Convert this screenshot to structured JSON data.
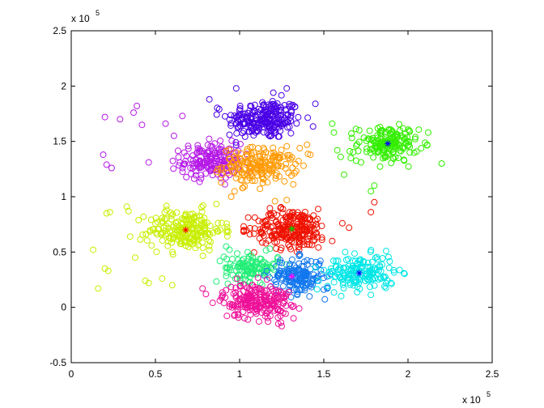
{
  "chart_data": {
    "type": "scatter",
    "xlim": [
      0,
      2.5
    ],
    "ylim": [
      -0.5,
      2.5
    ],
    "x_ticks": [
      "0",
      "0.5",
      "1",
      "1.5",
      "2",
      "2.5"
    ],
    "y_ticks": [
      "-0.5",
      "0",
      "0.5",
      "1",
      "1.5",
      "2",
      "2.5"
    ],
    "x_multiplier": {
      "base": "x 10",
      "exponent": "5"
    },
    "y_multiplier": {
      "base": "x 10",
      "exponent": "5"
    },
    "grid": false,
    "marker": "open-circle",
    "clusters": [
      {
        "color": "#4a00e6",
        "center": [
          1.15,
          1.7
        ],
        "spread": [
          0.11,
          0.09
        ],
        "count": 230,
        "outliers": [
          [
            0.82,
            1.88
          ],
          [
            0.98,
            1.98
          ],
          [
            1.28,
            1.98
          ],
          [
            1.45,
            1.84
          ],
          [
            0.94,
            1.56
          ],
          [
            1.2,
            1.94
          ]
        ]
      },
      {
        "color": "#b519e6",
        "center": [
          0.83,
          1.32
        ],
        "spread": [
          0.09,
          0.08
        ],
        "count": 180,
        "outliers": [
          [
            0.2,
            1.72
          ],
          [
            0.29,
            1.7
          ],
          [
            0.39,
            1.82
          ],
          [
            0.42,
            1.65
          ],
          [
            0.19,
            1.38
          ],
          [
            0.21,
            1.29
          ],
          [
            0.24,
            1.26
          ],
          [
            0.46,
            1.31
          ],
          [
            0.37,
            1.76
          ],
          [
            0.56,
            1.66
          ],
          [
            0.66,
            1.73
          ],
          [
            0.61,
            1.55
          ]
        ]
      },
      {
        "color": "#ff9900",
        "center": [
          1.12,
          1.28
        ],
        "spread": [
          0.11,
          0.08
        ],
        "count": 180,
        "outliers": [
          [
            1.28,
            0.97
          ],
          [
            1.21,
            0.96
          ],
          [
            1.4,
            1.47
          ],
          [
            1.42,
            1.38
          ],
          [
            0.97,
            1.05
          ],
          [
            1.02,
            1.08
          ],
          [
            0.95,
            1.0
          ],
          [
            1.38,
            1.28
          ]
        ]
      },
      {
        "color": "#33ee00",
        "center": [
          1.88,
          1.48
        ],
        "spread": [
          0.09,
          0.08
        ],
        "count": 170,
        "outliers": [
          [
            1.55,
            1.66
          ],
          [
            1.56,
            1.58
          ],
          [
            1.58,
            1.42
          ],
          [
            1.6,
            1.36
          ],
          [
            1.62,
            1.2
          ],
          [
            2.12,
            1.58
          ],
          [
            2.2,
            1.3
          ],
          [
            1.78,
            1.05
          ],
          [
            1.8,
            1.1
          ],
          [
            1.66,
            1.35
          ]
        ]
      },
      {
        "color": "#c8ee00",
        "center": [
          0.68,
          0.7
        ],
        "spread": [
          0.11,
          0.09
        ],
        "count": 210,
        "outliers": [
          [
            0.13,
            0.52
          ],
          [
            0.16,
            0.17
          ],
          [
            0.2,
            0.35
          ],
          [
            0.22,
            0.33
          ],
          [
            0.21,
            0.85
          ],
          [
            0.23,
            0.86
          ],
          [
            0.33,
            0.91
          ],
          [
            0.34,
            0.87
          ],
          [
            0.35,
            0.64
          ],
          [
            0.44,
            0.24
          ],
          [
            0.46,
            0.22
          ],
          [
            0.54,
            0.26
          ],
          [
            0.6,
            0.2
          ],
          [
            0.38,
            0.45
          ]
        ]
      },
      {
        "color": "#ee1100",
        "center": [
          1.31,
          0.71
        ],
        "spread": [
          0.11,
          0.09
        ],
        "count": 240,
        "outliers": [
          [
            1.61,
            0.76
          ],
          [
            1.65,
            0.72
          ],
          [
            1.78,
            0.86
          ],
          [
            1.8,
            0.95
          ],
          [
            1.55,
            0.6
          ]
        ]
      },
      {
        "color": "#22ee77",
        "center": [
          1.07,
          0.36
        ],
        "spread": [
          0.08,
          0.06
        ],
        "count": 120,
        "outliers": [
          [
            0.92,
            0.55
          ],
          [
            0.94,
            0.52
          ],
          [
            1.18,
            0.53
          ]
        ]
      },
      {
        "color": "#1177ee",
        "center": [
          1.34,
          0.28
        ],
        "spread": [
          0.08,
          0.08
        ],
        "count": 160,
        "outliers": [
          [
            1.5,
            0.16
          ],
          [
            1.52,
            0.17
          ],
          [
            1.48,
            0.42
          ]
        ]
      },
      {
        "color": "#00e6e6",
        "center": [
          1.72,
          0.31
        ],
        "spread": [
          0.1,
          0.08
        ],
        "count": 170,
        "outliers": [
          [
            1.45,
            0.36
          ],
          [
            1.47,
            0.24
          ]
        ]
      },
      {
        "color": "#ee1199",
        "center": [
          1.1,
          0.06
        ],
        "spread": [
          0.1,
          0.08
        ],
        "count": 220,
        "outliers": [
          [
            0.8,
            0.12
          ],
          [
            0.78,
            0.17
          ],
          [
            1.32,
            -0.1
          ],
          [
            1.25,
            -0.17
          ]
        ]
      }
    ],
    "cluster_centers": [
      {
        "x": 1.88,
        "y": 1.48,
        "color": "#0000ff"
      },
      {
        "x": 1.71,
        "y": 0.31,
        "color": "#0000ff"
      },
      {
        "x": 1.31,
        "y": 0.71,
        "color": "#00cc00"
      },
      {
        "x": 1.31,
        "y": 0.28,
        "color": "#ff00ff"
      },
      {
        "x": 0.68,
        "y": 0.7,
        "color": "#ff0000"
      }
    ]
  }
}
